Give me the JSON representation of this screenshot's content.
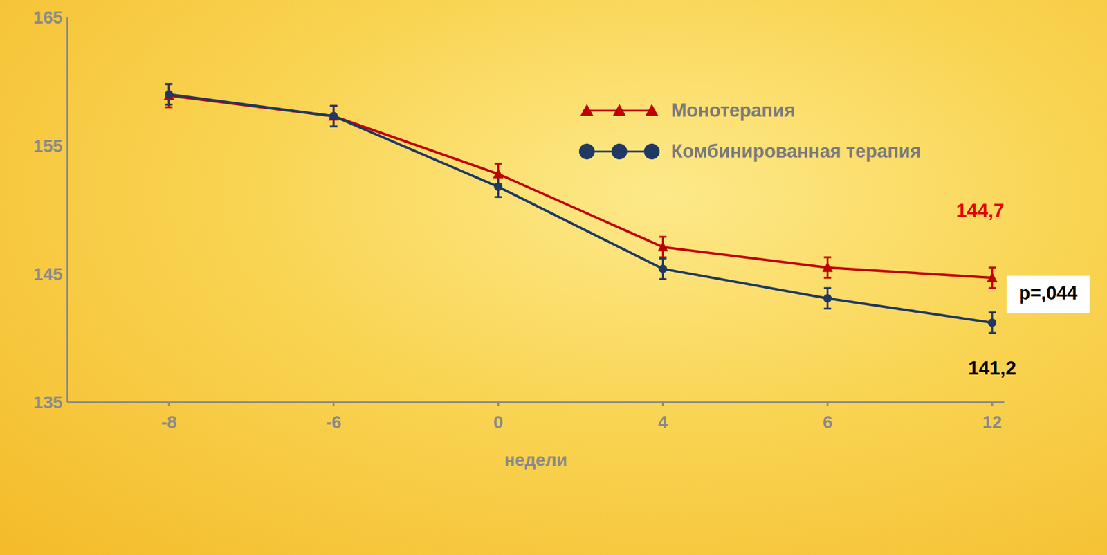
{
  "chart_data": {
    "type": "line",
    "x_label": "недели",
    "categories": [
      "-8",
      "-6",
      "0",
      "4",
      "6",
      "12"
    ],
    "series": [
      {
        "name": "Монотерапия",
        "color": "#c00000",
        "marker": "triangle",
        "values": [
          158.9,
          157.3,
          152.8,
          147.1,
          145.5,
          144.7
        ],
        "errors": [
          0.9,
          0.8,
          0.8,
          0.8,
          0.8,
          0.8
        ],
        "end_label": "144,7"
      },
      {
        "name": "Комбинированная терапия",
        "color": "#1f3864",
        "marker": "circle",
        "values": [
          159.0,
          157.3,
          151.8,
          145.4,
          143.1,
          141.2
        ],
        "errors": [
          0.8,
          0.8,
          0.8,
          0.8,
          0.8,
          0.8
        ],
        "end_label": "141,2"
      }
    ],
    "p_value_label": "p=,044",
    "ylim": [
      135,
      165
    ],
    "yticks": [
      135,
      145,
      155,
      165
    ],
    "grid": false,
    "legend": "top"
  }
}
